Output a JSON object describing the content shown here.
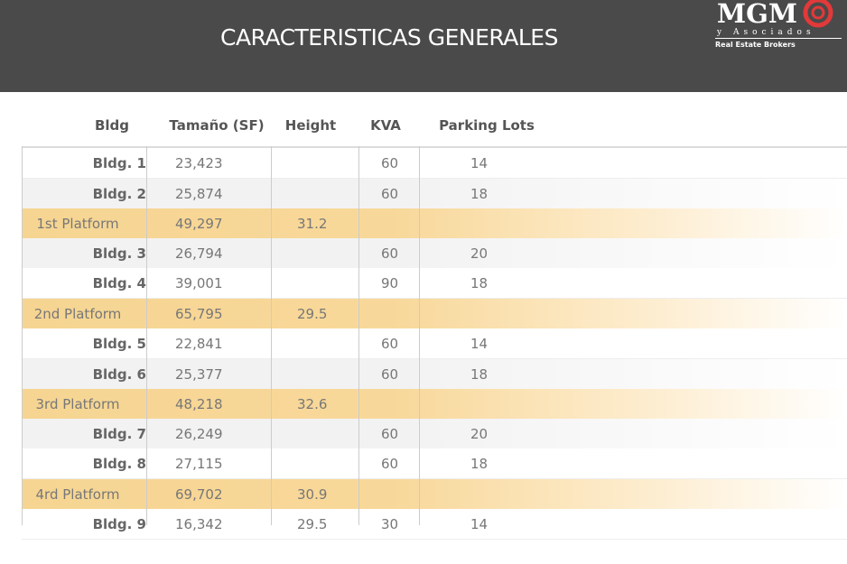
{
  "header": {
    "title": "CARACTERISTICAS GENERALES",
    "logo_main": "MGM",
    "logo_sub": "y Asociados",
    "logo_tagline": "Real Estate Brokers"
  },
  "table": {
    "columns": [
      "Bldg",
      "Tamaño (SF)",
      "Height",
      "KVA",
      "Parking Lots"
    ],
    "rows": [
      {
        "bldg": "Bldg. 1",
        "size": "23,423",
        "height": "",
        "kva": "60",
        "parking": "14",
        "kind": "bldg"
      },
      {
        "bldg": "Bldg. 2",
        "size": "25,874",
        "height": "",
        "kva": "60",
        "parking": "18",
        "kind": "bldg"
      },
      {
        "bldg": "1st Platform",
        "size": "49,297",
        "height": "31.2",
        "kva": "",
        "parking": "",
        "kind": "platform"
      },
      {
        "bldg": "Bldg. 3",
        "size": "26,794",
        "height": "",
        "kva": "60",
        "parking": "20",
        "kind": "bldg"
      },
      {
        "bldg": "Bldg. 4",
        "size": "39,001",
        "height": "",
        "kva": "90",
        "parking": "18",
        "kind": "bldg"
      },
      {
        "bldg": "2nd Platform",
        "size": "65,795",
        "height": "29.5",
        "kva": "",
        "parking": "",
        "kind": "platform"
      },
      {
        "bldg": "Bldg. 5",
        "size": "22,841",
        "height": "",
        "kva": "60",
        "parking": "14",
        "kind": "bldg"
      },
      {
        "bldg": "Bldg. 6",
        "size": "25,377",
        "height": "",
        "kva": "60",
        "parking": "18",
        "kind": "bldg"
      },
      {
        "bldg": "3rd Platform",
        "size": "48,218",
        "height": "32.6",
        "kva": "",
        "parking": "",
        "kind": "platform"
      },
      {
        "bldg": "Bldg. 7",
        "size": "26,249",
        "height": "",
        "kva": "60",
        "parking": "20",
        "kind": "bldg"
      },
      {
        "bldg": "Bldg. 8",
        "size": "27,115",
        "height": "",
        "kva": "60",
        "parking": "18",
        "kind": "bldg"
      },
      {
        "bldg": "4rd Platform",
        "size": "69,702",
        "height": "30.9",
        "kva": "",
        "parking": "",
        "kind": "platform"
      },
      {
        "bldg": "Bldg. 9",
        "size": "16,342",
        "height": "29.5",
        "kva": "30",
        "parking": "14",
        "kind": "bldg"
      }
    ]
  },
  "colors": {
    "header_bg": "#4a4a4a",
    "platform_highlight": "#f6d592",
    "logo_accent": "#e2393a"
  }
}
